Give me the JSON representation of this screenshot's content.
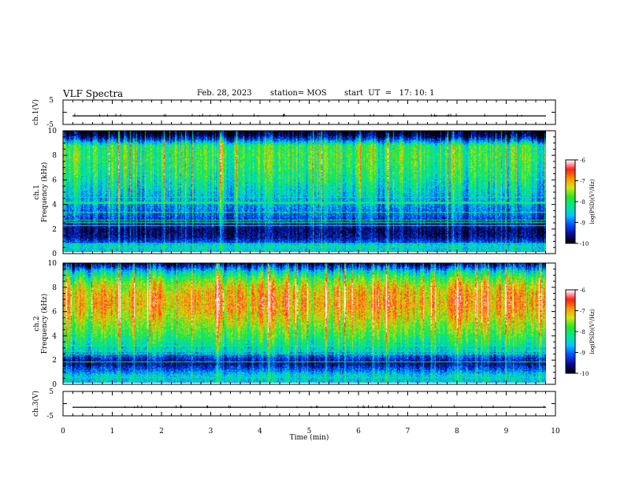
{
  "header": {
    "title": "VLF Spectra",
    "date": "Feb. 28, 2023",
    "station": "station= MOS",
    "start_ut": "start  UT  =   17: 10: 1"
  },
  "colors": {
    "colormap": [
      "#000000",
      "#0a0a9c",
      "#0050ff",
      "#00c8ff",
      "#00e890",
      "#28e628",
      "#d2e614",
      "#ff9600",
      "#ff1e1e",
      "#ffffff"
    ]
  },
  "chart_data": [
    {
      "id": "ch1_waveform",
      "type": "line",
      "ylabel": "ch.1(V)",
      "ylim": [
        -5,
        5
      ],
      "yticks": [
        "5",
        "-5"
      ],
      "series": [
        {
          "values_approx_constant": -1.5
        }
      ]
    },
    {
      "id": "ch1_spectrogram",
      "type": "heatmap",
      "ylabel_top": "ch.1",
      "ylabel": "Frequency (kHz)",
      "ylim": [
        0,
        10
      ],
      "yticks": [
        "0",
        "2",
        "4",
        "6",
        "8",
        "10"
      ],
      "xlim": [
        0,
        9.85
      ],
      "colorbar": {
        "label": "log(PSD)(V²/Hz)",
        "range": [
          -10,
          -6
        ],
        "ticks": [
          "-6",
          "-7",
          "-8",
          "-9",
          "-10"
        ]
      },
      "profile_log_psd": [
        {
          "f": 0.0,
          "v": -8.6
        },
        {
          "f": 0.5,
          "v": -8.4
        },
        {
          "f": 0.8,
          "v": -9.2
        },
        {
          "f": 1.2,
          "v": -9.6
        },
        {
          "f": 1.8,
          "v": -9.7
        },
        {
          "f": 2.2,
          "v": -9.5
        },
        {
          "f": 3.0,
          "v": -9.1
        },
        {
          "f": 4.0,
          "v": -8.8
        },
        {
          "f": 5.0,
          "v": -8.5
        },
        {
          "f": 6.0,
          "v": -8.2
        },
        {
          "f": 7.0,
          "v": -8.0
        },
        {
          "f": 8.0,
          "v": -7.9
        },
        {
          "f": 8.8,
          "v": -8.0
        },
        {
          "f": 9.3,
          "v": -9.2
        },
        {
          "f": 9.7,
          "v": -9.9
        },
        {
          "f": 10.0,
          "v": -10.0
        }
      ]
    },
    {
      "id": "ch2_spectrogram",
      "type": "heatmap",
      "ylabel_top": "ch.2",
      "ylabel": "Frequency (kHz)",
      "ylim": [
        0,
        10
      ],
      "yticks": [
        "0",
        "2",
        "4",
        "6",
        "8",
        "10"
      ],
      "xlim": [
        0,
        9.85
      ],
      "colorbar": {
        "label": "log(PSD)(V²/Hz)",
        "range": [
          -10,
          -6
        ],
        "ticks": [
          "-6",
          "-7",
          "-8",
          "-9",
          "-10"
        ]
      },
      "profile_log_psd": [
        {
          "f": 0.0,
          "v": -8.6
        },
        {
          "f": 0.6,
          "v": -8.5
        },
        {
          "f": 1.0,
          "v": -9.0
        },
        {
          "f": 1.6,
          "v": -9.6
        },
        {
          "f": 2.0,
          "v": -9.3
        },
        {
          "f": 2.6,
          "v": -8.6
        },
        {
          "f": 3.4,
          "v": -8.1
        },
        {
          "f": 4.5,
          "v": -7.6
        },
        {
          "f": 5.5,
          "v": -7.2
        },
        {
          "f": 6.5,
          "v": -6.9
        },
        {
          "f": 7.5,
          "v": -7.0
        },
        {
          "f": 8.2,
          "v": -7.3
        },
        {
          "f": 8.8,
          "v": -7.8
        },
        {
          "f": 9.3,
          "v": -8.4
        },
        {
          "f": 9.7,
          "v": -9.2
        },
        {
          "f": 10.0,
          "v": -9.6
        }
      ]
    },
    {
      "id": "ch3_waveform",
      "type": "line",
      "ylabel": "ch.3(V)",
      "ylim": [
        -5,
        5
      ],
      "yticks": [
        "5",
        "-5"
      ],
      "xlabel": "Time (min)",
      "xlim": [
        0,
        10
      ],
      "xticks": [
        "0",
        "1",
        "2",
        "3",
        "4",
        "5",
        "6",
        "7",
        "8",
        "9",
        "10"
      ],
      "series": [
        {
          "values_approx_constant": -1.5
        }
      ]
    }
  ]
}
